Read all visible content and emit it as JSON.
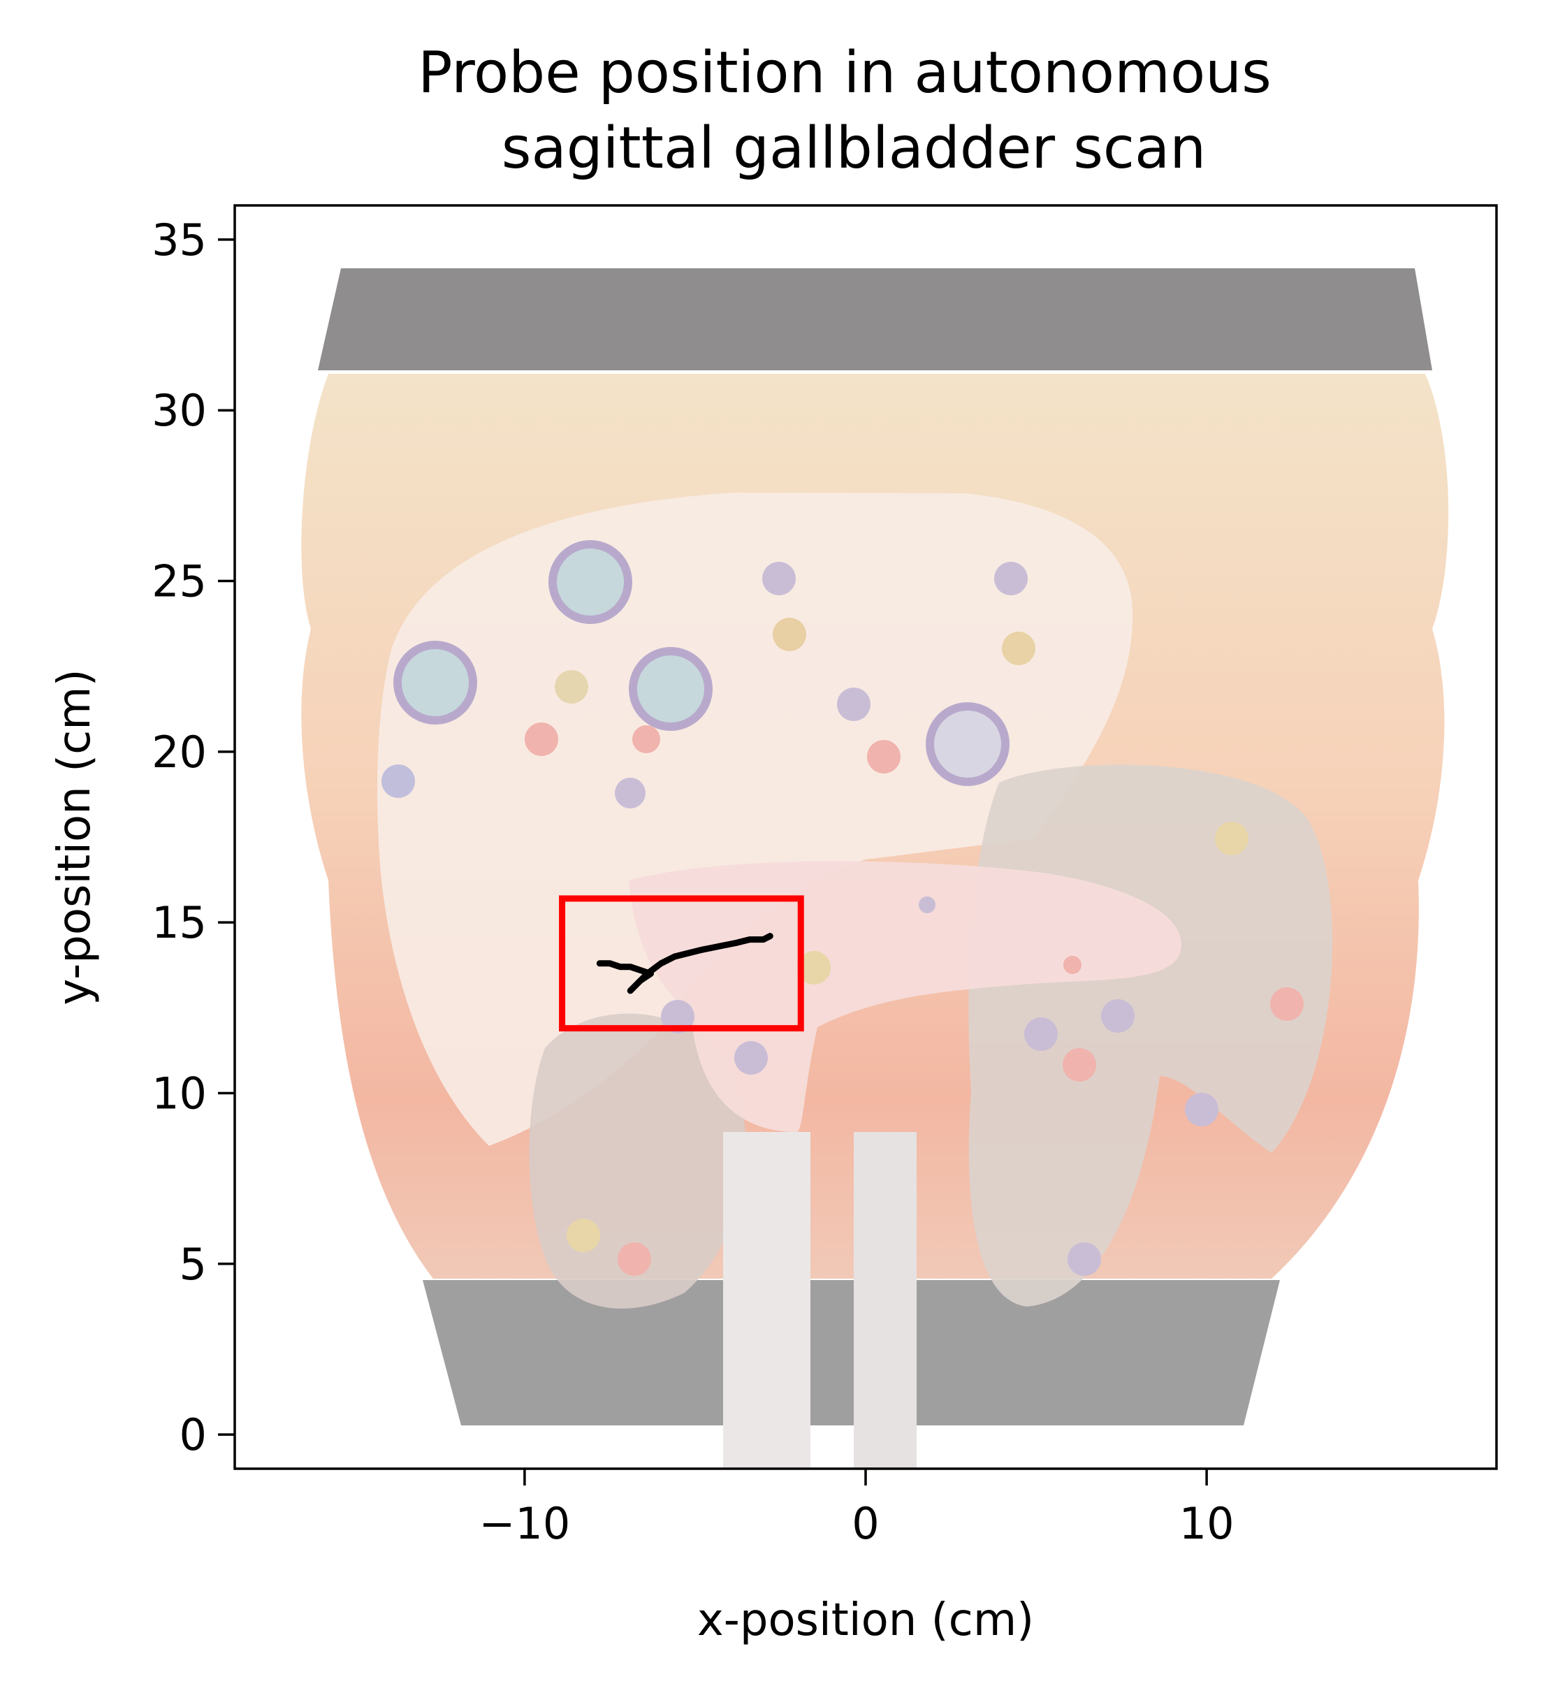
{
  "chart_data": {
    "type": "line",
    "title": "Probe position in autonomous\nsagittal gallbladder scan",
    "xlabel": "x-position (cm)",
    "ylabel": "y-position (cm)",
    "xlim": [
      -18.5,
      18.5
    ],
    "ylim": [
      -1,
      36
    ],
    "xticks": [
      -10,
      0,
      10
    ],
    "xtick_labels": [
      "−10",
      "0",
      "10"
    ],
    "yticks": [
      0,
      5,
      10,
      15,
      20,
      25,
      30,
      35
    ],
    "ytick_labels": [
      "0",
      "5",
      "10",
      "15",
      "20",
      "25",
      "30",
      "35"
    ],
    "grid": false,
    "background": "semi-transparent photo of an abdominal ultrasound phantom with overlaid liver, gallbladder and organ illustration",
    "series": [
      {
        "x": [
          -7.8,
          -7.5,
          -7.2,
          -6.9,
          -6.6,
          -6.3,
          -6.6,
          -6.9,
          -6.7,
          -6.4,
          -6.0,
          -5.6,
          -5.2,
          -4.8,
          -4.3,
          -3.8,
          -3.4,
          -3.0,
          -2.8
        ],
        "y": [
          13.8,
          13.8,
          13.7,
          13.7,
          13.6,
          13.5,
          13.3,
          13.0,
          13.2,
          13.5,
          13.8,
          14.0,
          14.1,
          14.2,
          14.3,
          14.4,
          14.5,
          14.5,
          14.6
        ],
        "color": "#000000"
      }
    ],
    "rectangle": {
      "x0": -8.9,
      "y0": 11.9,
      "x1": -1.9,
      "y1": 15.7,
      "color": "#ff0000"
    }
  }
}
